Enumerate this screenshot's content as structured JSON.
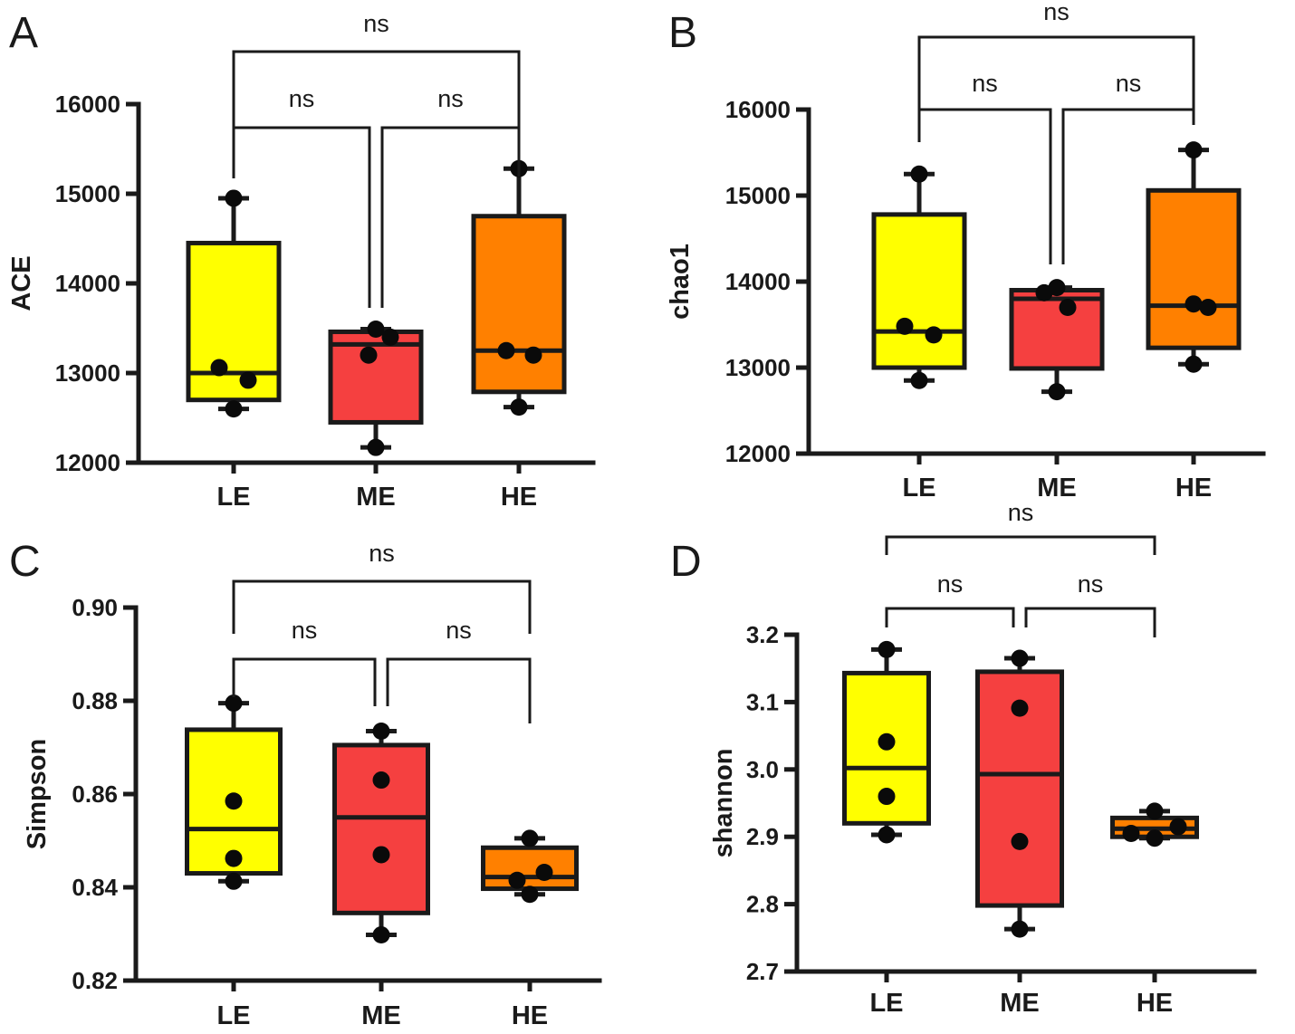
{
  "colors": {
    "LE": "#ffff00",
    "ME": "#f54040",
    "HE": "#ff8000"
  },
  "chart_data": [
    {
      "panel": "A",
      "type": "box",
      "title": "",
      "ylabel": "ACE",
      "xlabel": "",
      "categories": [
        "LE",
        "ME",
        "HE"
      ],
      "ylim": [
        12000,
        16000
      ],
      "yticks": [
        12000,
        13000,
        14000,
        15000,
        16000
      ],
      "ytick_labels": [
        "12000",
        "13000",
        "14000",
        "15000",
        "16000"
      ],
      "boxes": [
        {
          "min": 12600,
          "q1": 12700,
          "median": 13000,
          "q3": 14450,
          "max": 14950
        },
        {
          "min": 12170,
          "q1": 12450,
          "median": 13320,
          "q3": 13460,
          "max": 13490
        },
        {
          "min": 12620,
          "q1": 12790,
          "median": 13250,
          "q3": 14750,
          "max": 15280
        }
      ],
      "points": [
        [
          12600,
          13060,
          12920,
          14950
        ],
        [
          12170,
          13200,
          13400,
          13490
        ],
        [
          12620,
          13250,
          13200,
          15280
        ]
      ],
      "comparisons": [
        {
          "from": 0,
          "to": 1,
          "label": "ns"
        },
        {
          "from": 1,
          "to": 2,
          "label": "ns"
        },
        {
          "from": 0,
          "to": 2,
          "label": "ns"
        }
      ]
    },
    {
      "panel": "B",
      "type": "box",
      "title": "",
      "ylabel": "chao1",
      "xlabel": "",
      "categories": [
        "LE",
        "ME",
        "HE"
      ],
      "ylim": [
        12000,
        16000
      ],
      "yticks": [
        12000,
        13000,
        14000,
        15000,
        16000
      ],
      "ytick_labels": [
        "12000",
        "13000",
        "14000",
        "15000",
        "16000"
      ],
      "boxes": [
        {
          "min": 12850,
          "q1": 13000,
          "median": 13420,
          "q3": 14780,
          "max": 15250
        },
        {
          "min": 12720,
          "q1": 12990,
          "median": 13800,
          "q3": 13900,
          "max": 13930
        },
        {
          "min": 13040,
          "q1": 13230,
          "median": 13720,
          "q3": 15060,
          "max": 15530
        }
      ],
      "points": [
        [
          12850,
          13480,
          13380,
          15250
        ],
        [
          12720,
          13700,
          13870,
          13930
        ],
        [
          13040,
          13740,
          13700,
          15530
        ]
      ],
      "comparisons": [
        {
          "from": 0,
          "to": 1,
          "label": "ns"
        },
        {
          "from": 1,
          "to": 2,
          "label": "ns"
        },
        {
          "from": 0,
          "to": 2,
          "label": "ns"
        }
      ]
    },
    {
      "panel": "C",
      "type": "box",
      "title": "",
      "ylabel": "Simpson",
      "xlabel": "",
      "categories": [
        "LE",
        "ME",
        "HE"
      ],
      "ylim": [
        0.82,
        0.9
      ],
      "yticks": [
        0.82,
        0.84,
        0.86,
        0.88,
        0.9
      ],
      "ytick_labels": [
        "0.82",
        "0.84",
        "0.86",
        "0.88",
        "0.90"
      ],
      "boxes": [
        {
          "min": 0.8413,
          "q1": 0.843,
          "median": 0.8525,
          "q3": 0.8738,
          "max": 0.8795
        },
        {
          "min": 0.8298,
          "q1": 0.8345,
          "median": 0.855,
          "q3": 0.8705,
          "max": 0.8735
        },
        {
          "min": 0.8385,
          "q1": 0.8397,
          "median": 0.8422,
          "q3": 0.8485,
          "max": 0.8505
        }
      ],
      "points": [
        [
          0.8413,
          0.8462,
          0.8585,
          0.8795
        ],
        [
          0.8298,
          0.847,
          0.863,
          0.8735
        ],
        [
          0.8385,
          0.8415,
          0.8432,
          0.8505
        ]
      ],
      "comparisons": [
        {
          "from": 0,
          "to": 1,
          "label": "ns"
        },
        {
          "from": 1,
          "to": 2,
          "label": "ns"
        },
        {
          "from": 0,
          "to": 2,
          "label": "ns"
        }
      ]
    },
    {
      "panel": "D",
      "type": "box",
      "title": "",
      "ylabel": "shannon",
      "xlabel": "",
      "categories": [
        "LE",
        "ME",
        "HE"
      ],
      "ylim": [
        2.7,
        3.2
      ],
      "yticks": [
        2.7,
        2.8,
        2.9,
        3.0,
        3.1,
        3.2
      ],
      "ytick_labels": [
        "2.7",
        "2.8",
        "2.9",
        "3.0",
        "3.1",
        "3.2"
      ],
      "boxes": [
        {
          "min": 2.903,
          "q1": 2.92,
          "median": 3.002,
          "q3": 3.143,
          "max": 3.178
        },
        {
          "min": 2.763,
          "q1": 2.798,
          "median": 2.993,
          "q3": 3.145,
          "max": 3.165
        },
        {
          "min": 2.898,
          "q1": 2.9,
          "median": 2.912,
          "q3": 2.928,
          "max": 2.938
        }
      ],
      "points": [
        [
          2.903,
          2.96,
          3.041,
          3.178
        ],
        [
          2.763,
          2.893,
          3.091,
          3.165
        ],
        [
          2.898,
          2.905,
          2.915,
          2.938
        ]
      ],
      "comparisons": [
        {
          "from": 0,
          "to": 1,
          "label": "ns"
        },
        {
          "from": 1,
          "to": 2,
          "label": "ns"
        },
        {
          "from": 0,
          "to": 2,
          "label": "ns"
        }
      ]
    }
  ]
}
